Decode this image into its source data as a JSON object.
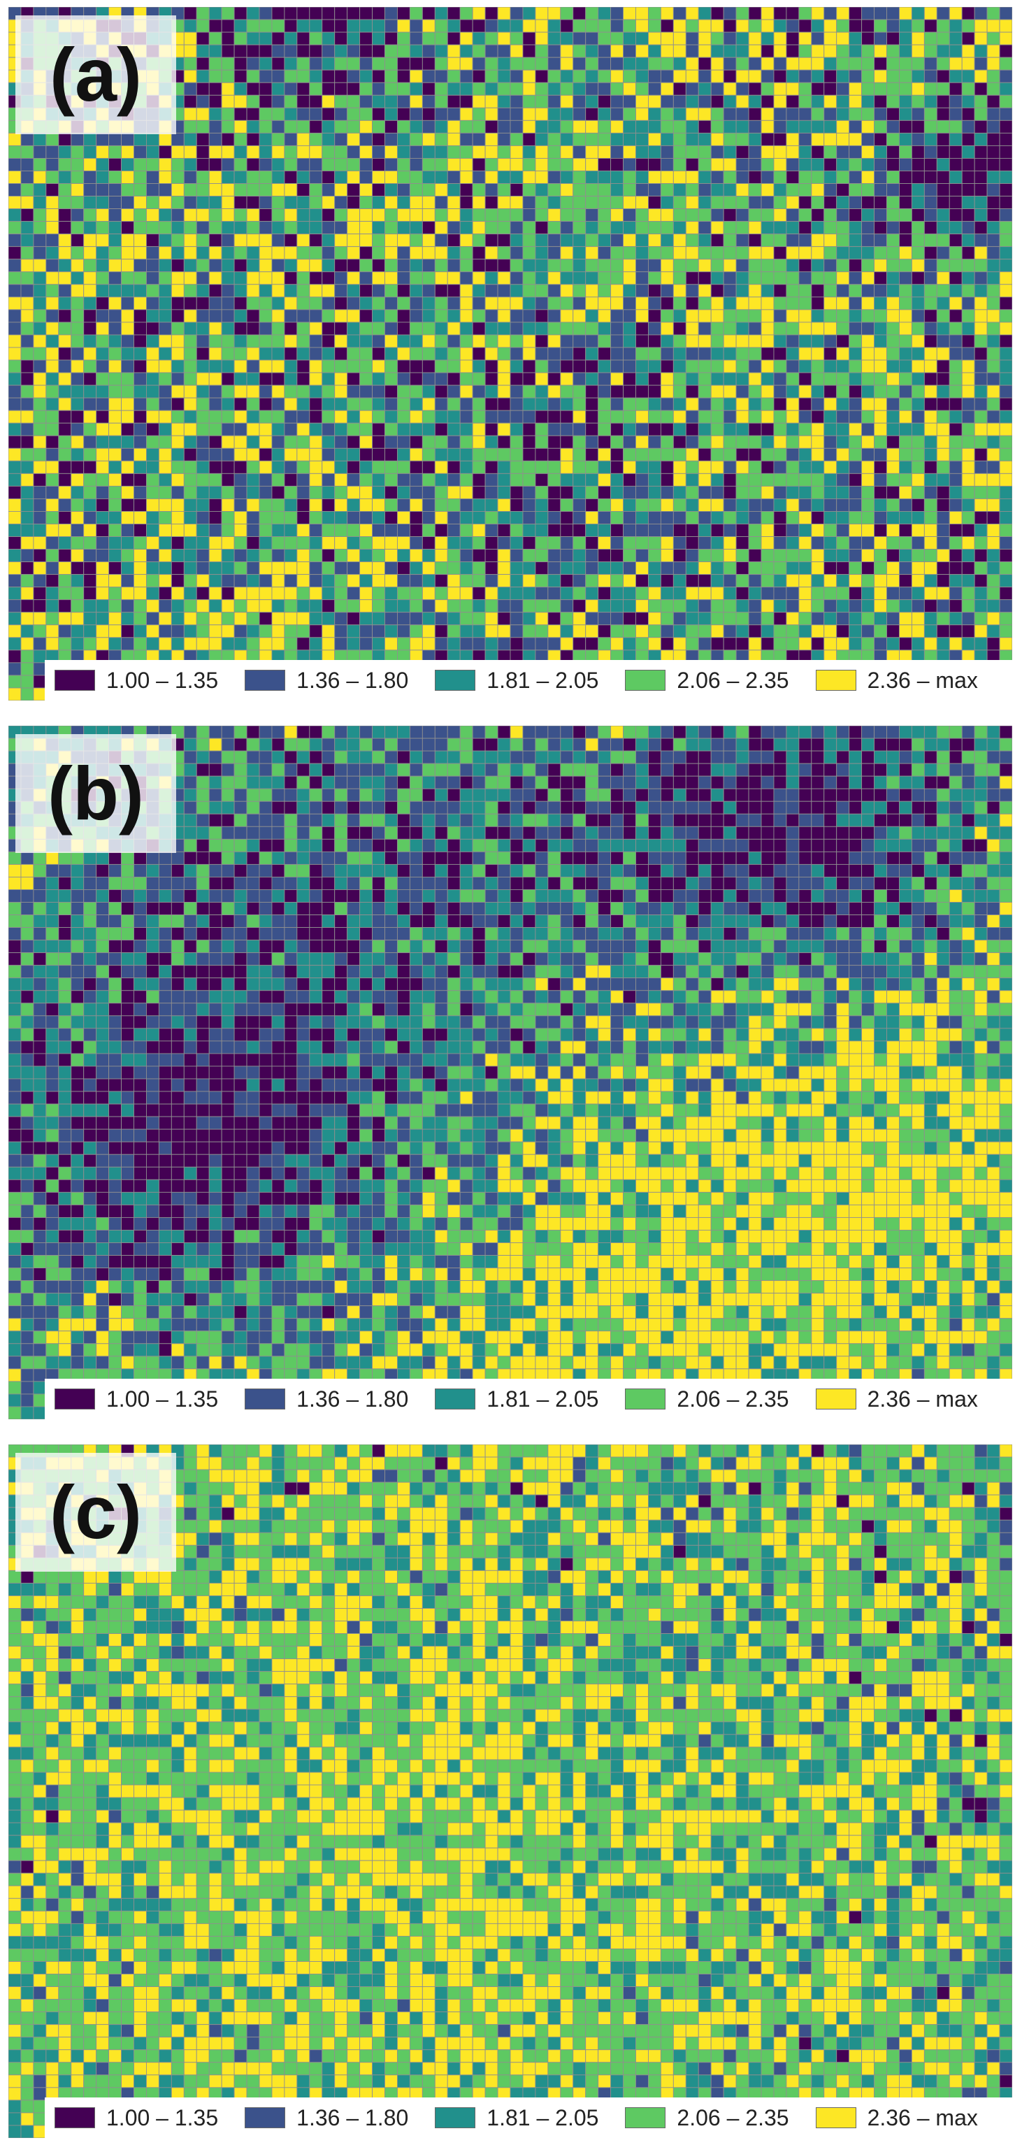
{
  "chart_data": [
    {
      "type": "heatmap",
      "panel_label": "(a)",
      "legend": [
        {
          "label": "1.00 – 1.35",
          "color": "#440154"
        },
        {
          "label": "1.36 – 1.80",
          "color": "#3b528b"
        },
        {
          "label": "1.81 – 2.05",
          "color": "#21908c"
        },
        {
          "label": "2.06 – 2.35",
          "color": "#5ec962"
        },
        {
          "label": "2.36 – max",
          "color": "#fde725"
        }
      ],
      "grid": {
        "rows": 55,
        "cols": 80
      },
      "class_proportions": [
        0.15,
        0.18,
        0.2,
        0.25,
        0.22
      ],
      "low_value_regions": [
        "top-right edge",
        "top-center",
        "scattered"
      ]
    },
    {
      "type": "heatmap",
      "panel_label": "(b)",
      "legend": [
        {
          "label": "1.00 – 1.35",
          "color": "#440154"
        },
        {
          "label": "1.36 – 1.80",
          "color": "#3b528b"
        },
        {
          "label": "1.81 – 2.05",
          "color": "#21908c"
        },
        {
          "label": "2.06 – 2.35",
          "color": "#5ec962"
        },
        {
          "label": "2.36 – max",
          "color": "#fde725"
        }
      ],
      "grid": {
        "rows": 55,
        "cols": 80
      },
      "class_proportions": [
        0.16,
        0.22,
        0.24,
        0.2,
        0.18
      ],
      "low_value_regions": [
        "top-right",
        "lower-left"
      ]
    },
    {
      "type": "heatmap",
      "panel_label": "(c)",
      "legend": [
        {
          "label": "1.00 – 1.35",
          "color": "#440154"
        },
        {
          "label": "1.36 – 1.80",
          "color": "#3b528b"
        },
        {
          "label": "1.81 – 2.05",
          "color": "#21908c"
        },
        {
          "label": "2.06 – 2.35",
          "color": "#5ec962"
        },
        {
          "label": "2.36 – max",
          "color": "#fde725"
        }
      ],
      "grid": {
        "rows": 55,
        "cols": 80
      },
      "class_proportions": [
        0.01,
        0.04,
        0.2,
        0.42,
        0.33
      ],
      "low_value_regions": []
    }
  ]
}
